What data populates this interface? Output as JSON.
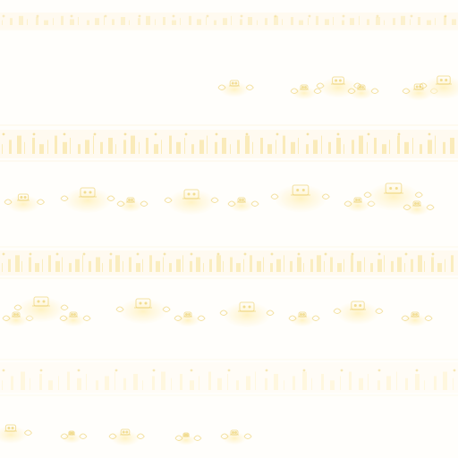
{
  "pattern": {
    "description": "",
    "colors": {
      "background": "#fffefb",
      "gold_light": "#fff2c4",
      "gold": "#f6df8e",
      "gold_dark": "#e9c957",
      "border_lines": "#fbf3d7",
      "faint": "#fff8e6"
    }
  }
}
